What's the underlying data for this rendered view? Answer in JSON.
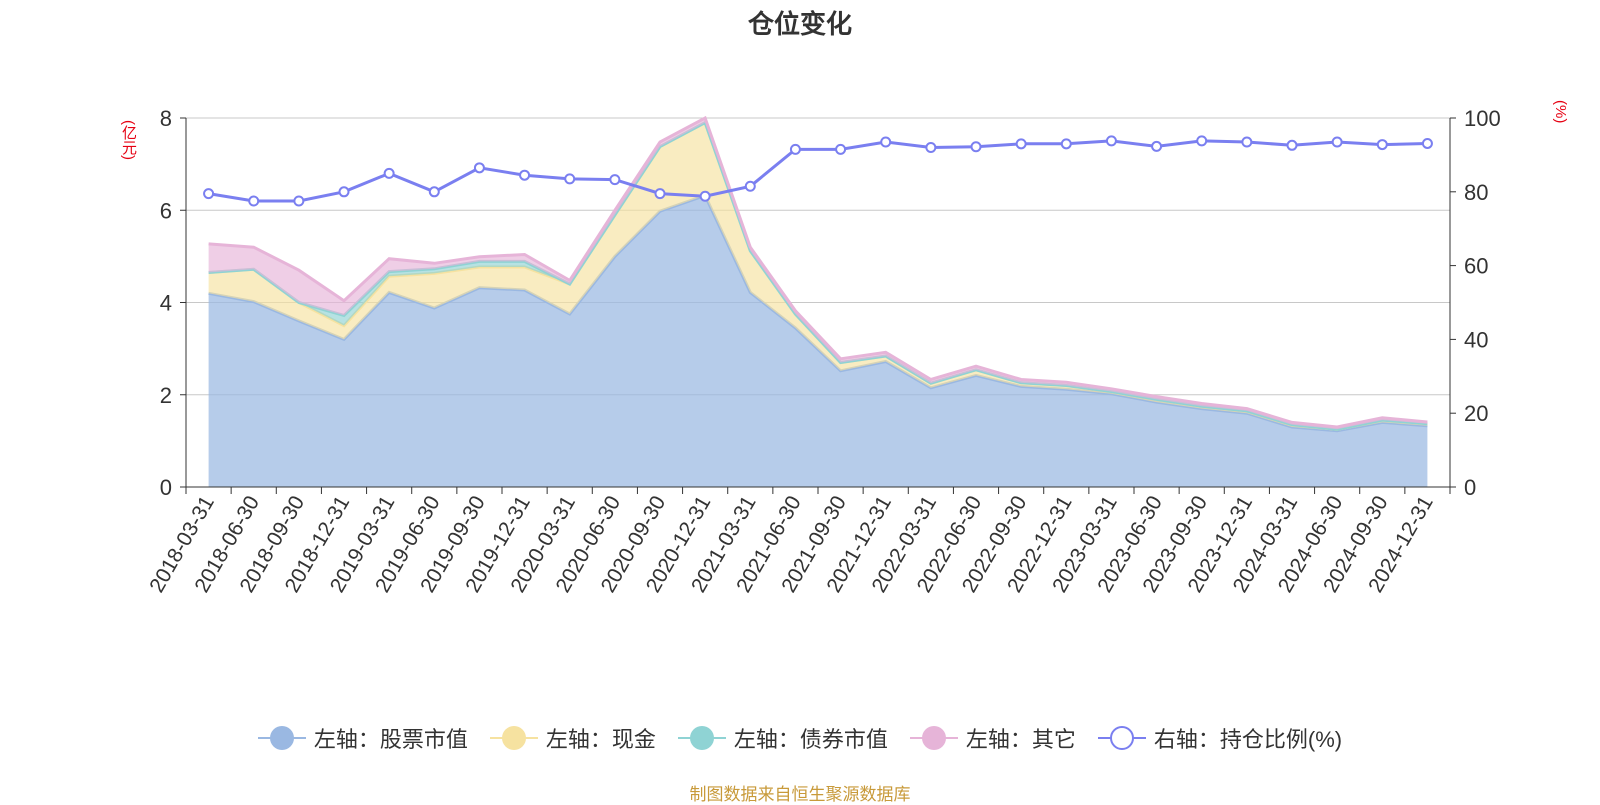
{
  "title": "仓位变化",
  "source_note": "制图数据来自恒生聚源数据库",
  "colors": {
    "stock": "#9ab8e2",
    "cash": "#f6e2a0",
    "bond": "#8fd3d4",
    "other": "#e6b4d8",
    "ratio": "#7a7ff0",
    "unit_text": "#e60012",
    "source_text": "#c89a3a"
  },
  "legend": [
    {
      "label": "左轴：股票市值",
      "key": "stock"
    },
    {
      "label": "左轴：现金",
      "key": "cash"
    },
    {
      "label": "左轴：债券市值",
      "key": "bond"
    },
    {
      "label": "左轴：其它",
      "key": "other"
    },
    {
      "label": "右轴：持仓比例(%)",
      "key": "ratio"
    }
  ],
  "chart_data": {
    "type": "area",
    "stacked": true,
    "y_left_unit": "(亿元)",
    "y_right_unit": "(%)",
    "y_left_range": [
      0,
      8
    ],
    "y_left_ticks": [
      0,
      2,
      4,
      6,
      8
    ],
    "y_right_range": [
      0,
      100
    ],
    "y_right_ticks": [
      0,
      20,
      40,
      60,
      80,
      100
    ],
    "grid": true,
    "legend_position": "bottom",
    "x": [
      "2018-03-31",
      "2018-06-30",
      "2018-09-30",
      "2018-12-31",
      "2019-03-31",
      "2019-06-30",
      "2019-09-30",
      "2019-12-31",
      "2020-03-31",
      "2020-06-30",
      "2020-09-30",
      "2020-12-31",
      "2021-03-31",
      "2021-06-30",
      "2021-09-30",
      "2021-12-31",
      "2022-03-31",
      "2022-06-30",
      "2022-09-30",
      "2022-12-31",
      "2023-03-31",
      "2023-06-30",
      "2023-09-30",
      "2023-12-31",
      "2024-03-31",
      "2024-06-30",
      "2024-09-30",
      "2024-12-31"
    ],
    "series": [
      {
        "name": "左轴：股票市值",
        "axis": "left",
        "kind": "area",
        "values": [
          4.2,
          4.02,
          3.6,
          3.2,
          4.22,
          3.88,
          4.32,
          4.27,
          3.75,
          5.0,
          5.98,
          6.32,
          4.22,
          3.45,
          2.52,
          2.72,
          2.15,
          2.42,
          2.18,
          2.12,
          2.02,
          1.84,
          1.7,
          1.6,
          1.3,
          1.22,
          1.4,
          1.33
        ]
      },
      {
        "name": "左轴：现金",
        "axis": "left",
        "kind": "area",
        "values": [
          0.45,
          0.7,
          0.4,
          0.3,
          0.35,
          0.75,
          0.45,
          0.5,
          0.65,
          0.9,
          1.4,
          1.58,
          0.9,
          0.3,
          0.18,
          0.12,
          0.1,
          0.12,
          0.08,
          0.08,
          0.05,
          0.06,
          0.05,
          0.05,
          0.05,
          0.03,
          0.05,
          0.04
        ]
      },
      {
        "name": "左轴：债券市值",
        "axis": "left",
        "kind": "area",
        "values": [
          0,
          0,
          0,
          0.22,
          0.1,
          0.1,
          0.12,
          0.12,
          0,
          0,
          0,
          0,
          0,
          0,
          0,
          0,
          0,
          0,
          0,
          0,
          0,
          0,
          0,
          0,
          0,
          0,
          0,
          0
        ]
      },
      {
        "name": "左轴：其它",
        "axis": "left",
        "kind": "area",
        "values": [
          0.62,
          0.48,
          0.7,
          0.32,
          0.28,
          0.12,
          0.1,
          0.15,
          0.08,
          0.1,
          0.1,
          0.1,
          0.08,
          0.07,
          0.08,
          0.08,
          0.08,
          0.08,
          0.07,
          0.07,
          0.06,
          0.06,
          0.06,
          0.05,
          0.05,
          0.05,
          0.05,
          0.04
        ]
      },
      {
        "name": "右轴：持仓比例(%)",
        "axis": "right",
        "kind": "line",
        "values": [
          79.5,
          77.5,
          77.5,
          80,
          85,
          80,
          86.5,
          84.5,
          83.5,
          83.3,
          79.5,
          78.8,
          81.5,
          91.5,
          91.5,
          93.5,
          92,
          92.2,
          93,
          93,
          93.8,
          92.3,
          93.8,
          93.5,
          92.6,
          93.5,
          92.8,
          93.1
        ]
      }
    ]
  }
}
